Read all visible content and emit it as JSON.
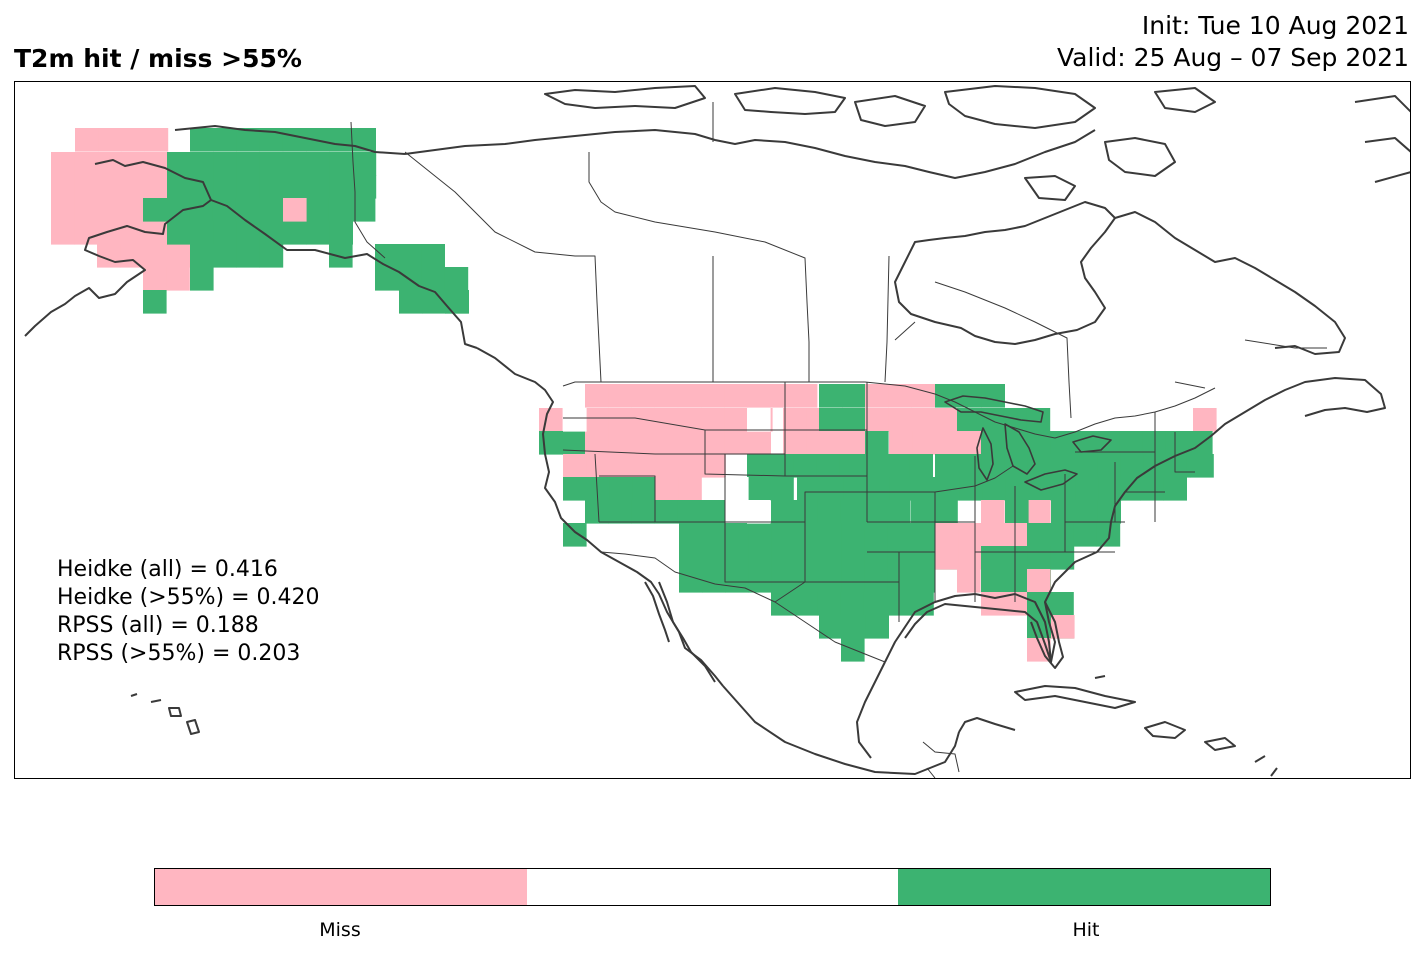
{
  "header": {
    "title": "T2m hit / miss  >55%",
    "init": "Init: Tue 10 Aug 2021",
    "valid": "Valid: 25 Aug – 07 Sep 2021"
  },
  "stats": [
    "Heidke (all) = 0.416",
    "Heidke (>55%) = 0.420",
    "RPSS (all) = 0.188",
    "RPSS (>55%) = 0.203"
  ],
  "colorbar": {
    "segments": [
      {
        "label": "Miss",
        "color": "#ffb6c1"
      },
      {
        "label": "",
        "color": "#ffffff"
      },
      {
        "label": "Hit",
        "color": "#3cb371"
      }
    ]
  },
  "colors": {
    "miss": "#ffb6c1",
    "hit": "#3cb371",
    "coast": "#3a3a3a",
    "border": "#3a3a3a"
  }
}
